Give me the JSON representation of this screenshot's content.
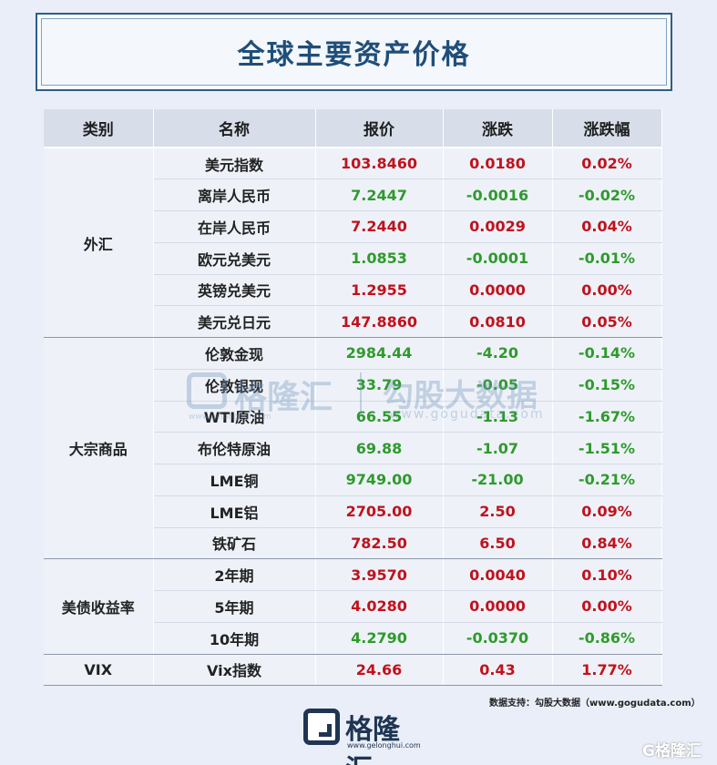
{
  "title": "全球主要资产价格",
  "headers": [
    "类别",
    "名称",
    "报价",
    "涨跌",
    "涨跌幅"
  ],
  "groups": [
    {
      "category": "外汇",
      "rows": [
        {
          "name": "美元指数",
          "price": "103.8460",
          "change": "0.0180",
          "pct": "0.02%",
          "dir": "up"
        },
        {
          "name": "离岸人民币",
          "price": "7.2447",
          "change": "-0.0016",
          "pct": "-0.02%",
          "dir": "down"
        },
        {
          "name": "在岸人民币",
          "price": "7.2440",
          "change": "0.0029",
          "pct": "0.04%",
          "dir": "up"
        },
        {
          "name": "欧元兑美元",
          "price": "1.0853",
          "change": "-0.0001",
          "pct": "-0.01%",
          "dir": "down"
        },
        {
          "name": "英镑兑美元",
          "price": "1.2955",
          "change": "0.0000",
          "pct": "0.00%",
          "dir": "up"
        },
        {
          "name": "美元兑日元",
          "price": "147.8860",
          "change": "0.0810",
          "pct": "0.05%",
          "dir": "up"
        }
      ]
    },
    {
      "category": "大宗商品",
      "rows": [
        {
          "name": "伦敦金现",
          "price": "2984.44",
          "change": "-4.20",
          "pct": "-0.14%",
          "dir": "down"
        },
        {
          "name": "伦敦银现",
          "price": "33.79",
          "change": "-0.05",
          "pct": "-0.15%",
          "dir": "down"
        },
        {
          "name": "WTI原油",
          "price": "66.55",
          "change": "-1.13",
          "pct": "-1.67%",
          "dir": "down"
        },
        {
          "name": "布伦特原油",
          "price": "69.88",
          "change": "-1.07",
          "pct": "-1.51%",
          "dir": "down"
        },
        {
          "name": "LME铜",
          "price": "9749.00",
          "change": "-21.00",
          "pct": "-0.21%",
          "dir": "down"
        },
        {
          "name": "LME铝",
          "price": "2705.00",
          "change": "2.50",
          "pct": "0.09%",
          "dir": "up"
        },
        {
          "name": "铁矿石",
          "price": "782.50",
          "change": "6.50",
          "pct": "0.84%",
          "dir": "up"
        }
      ]
    },
    {
      "category": "美债收益率",
      "rows": [
        {
          "name": "2年期",
          "price": "3.9570",
          "change": "0.0040",
          "pct": "0.10%",
          "dir": "up"
        },
        {
          "name": "5年期",
          "price": "4.0280",
          "change": "0.0000",
          "pct": "0.00%",
          "dir": "up"
        },
        {
          "name": "10年期",
          "price": "4.2790",
          "change": "-0.0370",
          "pct": "-0.86%",
          "dir": "down"
        }
      ]
    },
    {
      "category": "VIX",
      "rows": [
        {
          "name": "Vix指数",
          "price": "24.66",
          "change": "0.43",
          "pct": "1.77%",
          "dir": "up"
        }
      ]
    }
  ],
  "watermark": {
    "brand": "格隆汇",
    "brand_url": "www.gelonghui.com",
    "data_brand": "勾股大数据",
    "data_url": "www.gogudata.com"
  },
  "source": "数据支持：勾股大数据（www.gogudata.com）",
  "logo": {
    "name": "格隆汇",
    "url": "www.gelonghui.com"
  },
  "corner_watermark": "G格隆汇",
  "colors": {
    "up": "#c0121d",
    "down": "#2f9a2d",
    "title": "#1f4e79",
    "header_bg": "#d7deea"
  }
}
